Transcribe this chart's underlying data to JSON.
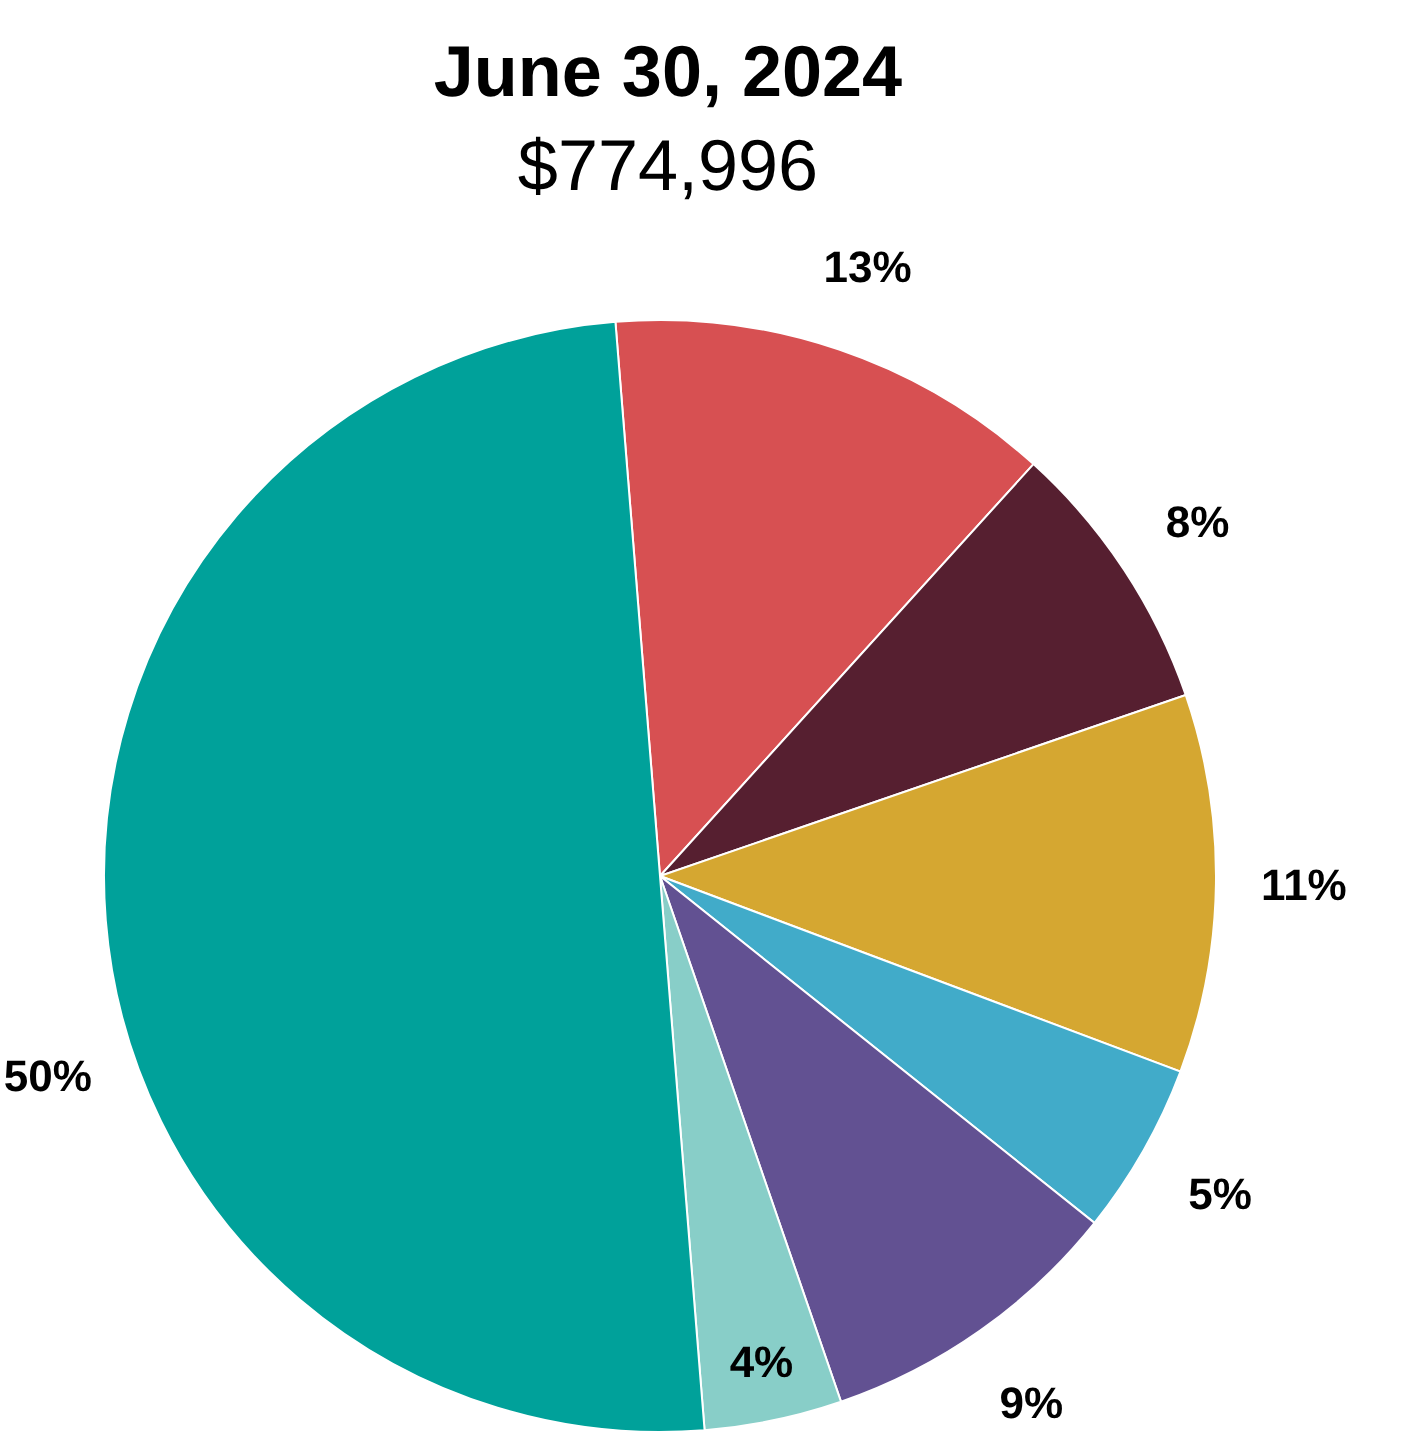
{
  "chart_data": {
    "type": "pie",
    "title": "June 30, 2024",
    "subtitle": "$774,996",
    "categories": [
      null,
      null,
      null,
      null,
      null,
      null,
      null
    ],
    "values": [
      13,
      8,
      11,
      5,
      9,
      4,
      50
    ],
    "colors": [
      "#d75052",
      "#561f30",
      "#d5a731",
      "#41abc9",
      "#625192",
      "#88cec8",
      "#00a19a"
    ],
    "value_labels": [
      "13%",
      "8%",
      "11%",
      "5%",
      "9%",
      "4%",
      "50%"
    ]
  }
}
